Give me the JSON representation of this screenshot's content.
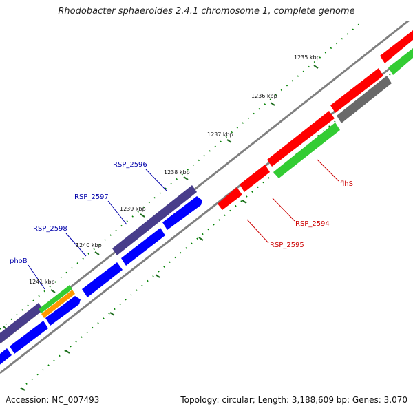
{
  "title": "Rhodobacter sphaeroides 2.4.1 chromosome 1, complete genome",
  "accession_text": "Accession: NC_007493",
  "summary_text": "Topology: circular; Length: 3,188,609 bp; Genes: 3,070",
  "colors": {
    "backbone": "#808080",
    "tick_minor": "#008000",
    "tick_major": "#1e6e1e",
    "reverse_gene": "#ff0000",
    "forward_gene": "#0000ff",
    "forward_cds": "#483d8b",
    "reverse_cds": "#696969",
    "rna_green": "#33cc33",
    "rna_orange": "#ff9900",
    "label_blue": "#0000aa",
    "label_red": "#cc0000"
  },
  "ticks": [
    "1235 kbp",
    "1236 kbp",
    "1237 kbp",
    "1238 kbp",
    "1239 kbp",
    "1240 kbp",
    "1241 kbp"
  ],
  "gene_labels": {
    "forward": [
      "RSP_2596",
      "RSP_2597",
      "RSP_2598",
      "phoB"
    ],
    "reverse": [
      "flhS",
      "RSP_2594",
      "RSP_2595"
    ]
  }
}
